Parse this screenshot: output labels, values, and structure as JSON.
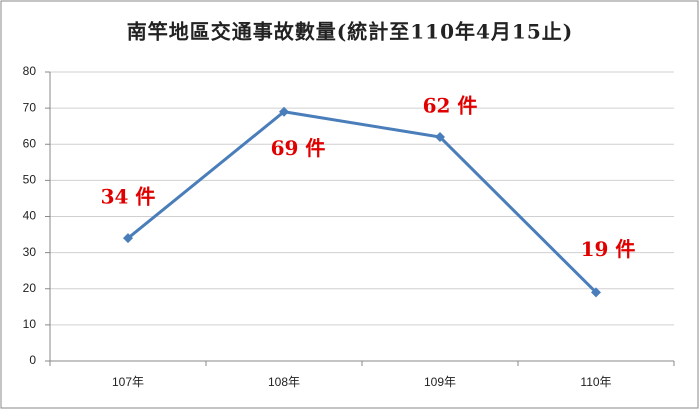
{
  "chart_data": {
    "type": "line",
    "title": "南竿地區交通事故數量(統計至110年4月15止)",
    "categories": [
      "107年",
      "108年",
      "109年",
      "110年"
    ],
    "series": [
      {
        "color": "#4a7ebb",
        "values": [
          34,
          69,
          62,
          19
        ],
        "value_labels": [
          "34 件",
          "69 件",
          "62 件",
          "19 件"
        ]
      }
    ],
    "ylim": [
      0,
      80
    ],
    "yticks": [
      0,
      10,
      20,
      30,
      40,
      50,
      60,
      70,
      80
    ],
    "grid": true,
    "label_color": "#e00000"
  }
}
